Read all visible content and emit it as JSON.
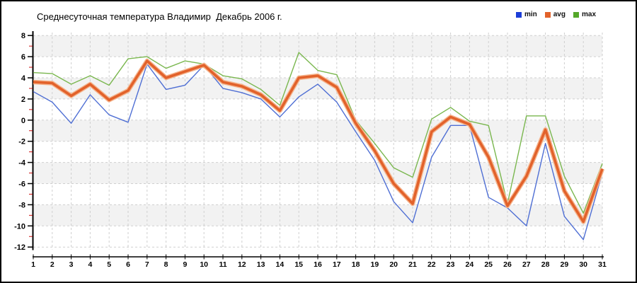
{
  "chart_data": {
    "type": "line",
    "title": "Среднесуточная температура Владимир  Декабрь 2006 г.",
    "xlabel": "",
    "ylabel": "",
    "ylim": [
      -12,
      8
    ],
    "y_ticks": [
      8,
      6,
      4,
      2,
      0,
      -2,
      -4,
      -6,
      -8,
      -10,
      -12
    ],
    "grid": true,
    "legend_position": "top-right",
    "categories": [
      1,
      2,
      3,
      4,
      5,
      6,
      7,
      8,
      9,
      10,
      11,
      12,
      13,
      14,
      15,
      16,
      17,
      18,
      19,
      20,
      21,
      22,
      23,
      24,
      25,
      26,
      27,
      28,
      29,
      30,
      31
    ],
    "series": [
      {
        "name": "min",
        "color": "#1c3ed8",
        "line_color": "#4f6fd4",
        "values": [
          2.7,
          1.7,
          -0.3,
          2.4,
          0.5,
          -0.2,
          5.3,
          2.9,
          3.3,
          5.2,
          3.0,
          2.6,
          2.0,
          0.3,
          2.2,
          3.4,
          1.7,
          -1.1,
          -3.8,
          -7.7,
          -9.7,
          -3.5,
          -0.5,
          -0.5,
          -7.3,
          -8.3,
          -10.0,
          -2.2,
          -9.1,
          -11.3,
          -5.0
        ]
      },
      {
        "name": "avg",
        "color": "#e2622b",
        "line_color": "#e2622b",
        "halo_color": "#f5b58e",
        "values": [
          3.6,
          3.5,
          2.3,
          3.4,
          1.9,
          2.8,
          5.6,
          4.0,
          4.6,
          5.2,
          3.6,
          3.2,
          2.4,
          0.9,
          4.0,
          4.2,
          3.1,
          -0.3,
          -2.9,
          -6.0,
          -7.9,
          -1.1,
          0.3,
          -0.4,
          -3.5,
          -8.1,
          -5.3,
          -0.9,
          -6.7,
          -9.6,
          -4.6
        ]
      },
      {
        "name": "max",
        "color": "#55a82a",
        "line_color": "#7ab74f",
        "values": [
          4.5,
          4.4,
          3.4,
          4.2,
          3.3,
          5.8,
          6.0,
          4.9,
          5.6,
          5.3,
          4.2,
          3.9,
          2.9,
          1.4,
          6.4,
          4.7,
          4.3,
          0.0,
          -2.2,
          -4.5,
          -5.4,
          0.1,
          1.2,
          -0.1,
          -0.5,
          -7.9,
          0.4,
          0.4,
          -5.3,
          -8.8,
          -4.1
        ]
      }
    ],
    "colors": {
      "stripe": "#f2f2f2",
      "gridline": "#cfcfcf",
      "axis": "#000000",
      "minor_tick": "#cc1111"
    }
  }
}
